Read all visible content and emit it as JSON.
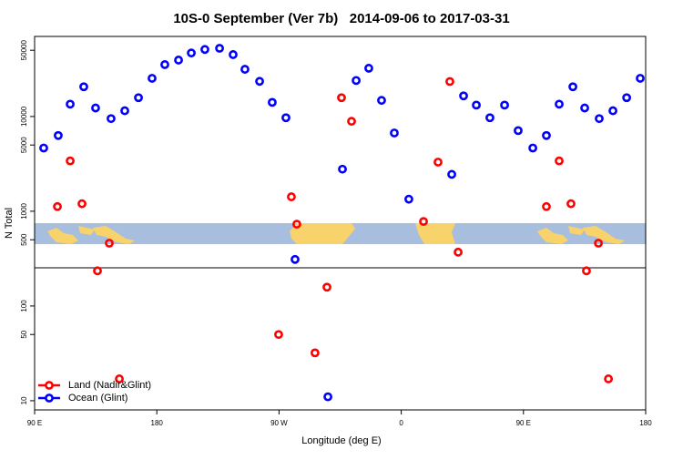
{
  "chart_data": {
    "type": "scatter",
    "title": "10S-0 September (Ver 7b)   2014-09-06 to 2017-03-31",
    "x_label": "Longitude (deg E)",
    "y_label": "N Total",
    "xlim": [
      90,
      540
    ],
    "xticks": [
      {
        "value": 90,
        "label": "90 E"
      },
      180,
      {
        "value": 270,
        "label": "90 W"
      },
      {
        "value": 360,
        "label": "0"
      },
      {
        "value": 450,
        "label": "90 E"
      },
      {
        "value": 540,
        "label": "180"
      }
    ],
    "ylim": [
      8,
      70000
    ],
    "y_scale": "log",
    "yticks": [
      10,
      50,
      100,
      500,
      1000,
      5000,
      10000,
      50000
    ],
    "legend": "bottom-left",
    "series": [
      {
        "name": "Land (Nadir&Glint)",
        "color": "#ff0000",
        "x": [
          106.8,
          116.2,
          124.9,
          136.3,
          145.0,
          152.4,
          269.7,
          279.1,
          283.1,
          296.5,
          305.3,
          316.0,
          323.4,
          376.4,
          387.1,
          395.8,
          401.9,
          466.9,
          476.3,
          485.0,
          496.4,
          505.2,
          512.6
        ],
        "values": [
          1120,
          3400,
          1200,
          235,
          460,
          17,
          50,
          1420,
          730,
          32,
          158,
          15800,
          8900,
          780,
          3300,
          23400,
          370,
          1120,
          3400,
          1200,
          235,
          460,
          17
        ]
      },
      {
        "name": "Ocean (Glint)",
        "color": "#0000ff",
        "x": [
          96.7,
          107.4,
          116.2,
          126.2,
          134.9,
          146.3,
          156.4,
          166.5,
          176.5,
          185.9,
          196.0,
          205.4,
          215.4,
          226.2,
          236.2,
          244.9,
          255.7,
          265.0,
          275.1,
          281.8,
          306.0,
          316.7,
          326.8,
          336.1,
          345.5,
          354.9,
          365.6,
          397.2,
          405.9,
          415.3,
          425.3,
          436.1,
          446.1,
          456.9,
          466.9,
          476.3,
          486.4,
          495.1,
          505.8,
          515.9,
          526.0,
          536.0
        ],
        "values": [
          4650,
          6300,
          13500,
          20600,
          12300,
          9500,
          11500,
          15800,
          25300,
          35300,
          39400,
          46800,
          51000,
          52500,
          45000,
          31500,
          23500,
          14100,
          9700,
          310,
          11,
          2780,
          24000,
          32300,
          14800,
          6700,
          1340,
          2450,
          16500,
          13200,
          9700,
          13200,
          7100,
          4650,
          6300,
          13500,
          20600,
          12300,
          9500,
          11500,
          15800,
          25300
        ]
      }
    ]
  }
}
